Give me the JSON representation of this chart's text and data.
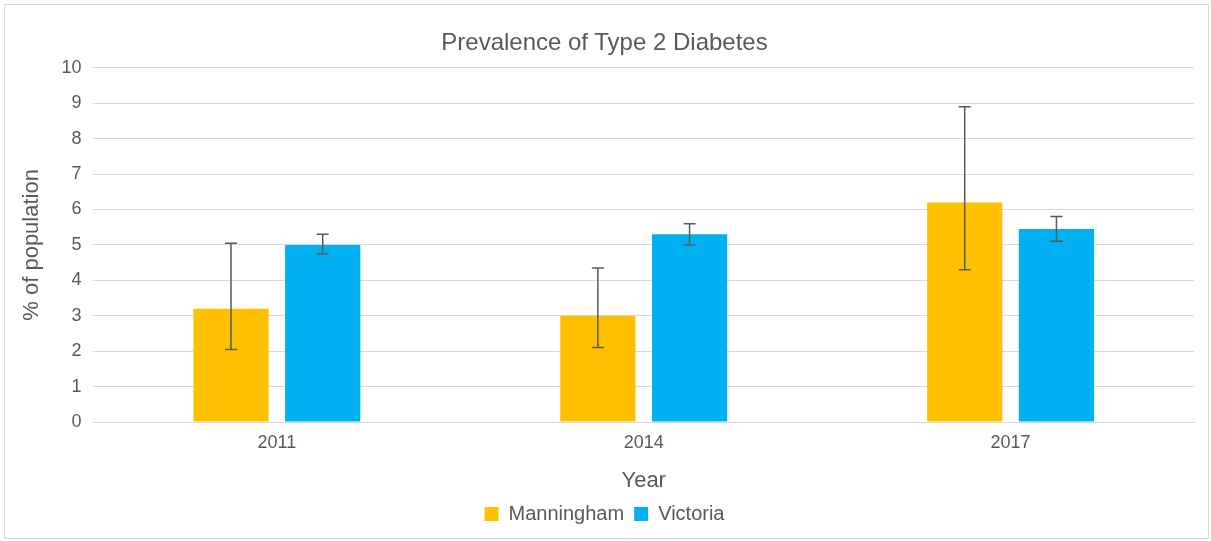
{
  "chart_data": {
    "type": "bar",
    "title": "Prevalence of Type 2 Diabetes",
    "xlabel": "Year",
    "ylabel": "% of population",
    "categories": [
      "2011",
      "2014",
      "2017"
    ],
    "series": [
      {
        "name": "Manningham",
        "color": "#ffc000",
        "values": [
          3.2,
          3.0,
          6.2
        ],
        "errors": [
          [
            2.05,
            5.05
          ],
          [
            2.1,
            4.35
          ],
          [
            4.3,
            8.9
          ]
        ]
      },
      {
        "name": "Victoria",
        "color": "#00b0f0",
        "values": [
          5.0,
          5.3,
          5.45
        ],
        "errors": [
          [
            4.75,
            5.3
          ],
          [
            5.0,
            5.6
          ],
          [
            5.1,
            5.8
          ]
        ]
      }
    ],
    "ylim": [
      0,
      10
    ],
    "yticks": [
      0,
      1,
      2,
      3,
      4,
      5,
      6,
      7,
      8,
      9,
      10
    ],
    "grid": "y",
    "legend": "bottom"
  }
}
